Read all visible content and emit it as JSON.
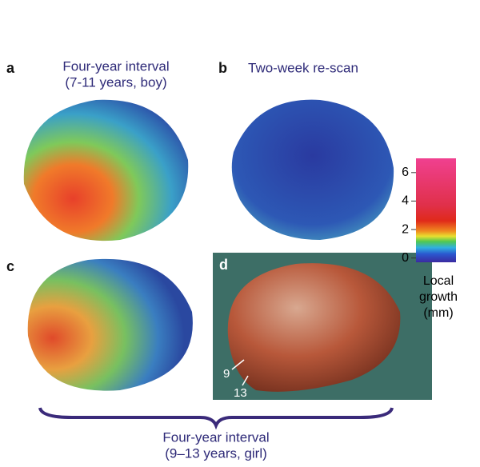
{
  "panels": [
    {
      "letter": "a",
      "title_lines": [
        "Four-year interval",
        "(7-11 years, boy)"
      ]
    },
    {
      "letter": "b",
      "title_lines": [
        "Two-week re-scan"
      ]
    },
    {
      "letter": "c"
    },
    {
      "letter": "d",
      "arrow_labels": [
        "9",
        "13"
      ]
    }
  ],
  "colorbar": {
    "lim": [
      -0.3,
      7.0
    ],
    "ticks": [
      0,
      2,
      4,
      6
    ],
    "label_lines": [
      "Local",
      "growth",
      "(mm)"
    ]
  },
  "footer": {
    "lines": [
      "Four-year interval",
      "(9–13 years, girl)"
    ]
  }
}
